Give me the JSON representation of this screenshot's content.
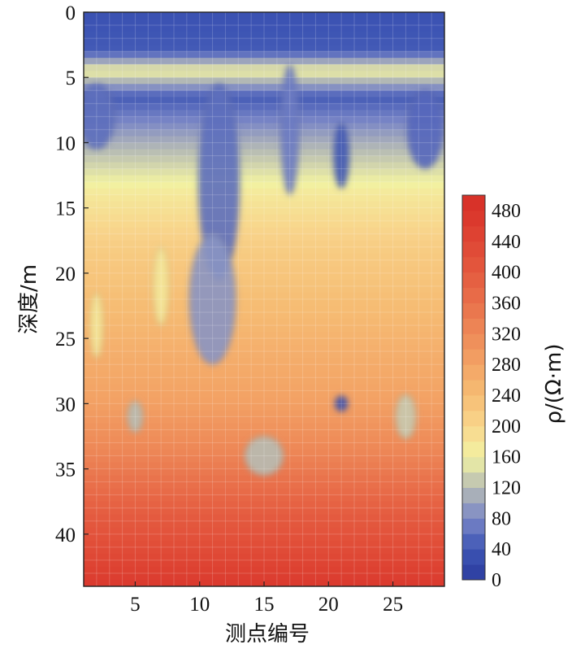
{
  "chart_data": {
    "type": "heatmap",
    "title": "",
    "xlabel": "测点编号",
    "ylabel": "深度/m",
    "colorbar_label": "ρ/(Ω·m)",
    "xlim": [
      1,
      29
    ],
    "ylim": [
      0,
      44
    ],
    "y_inverted": true,
    "x_ticks": [
      5,
      10,
      15,
      20,
      25
    ],
    "y_ticks": [
      0,
      5,
      10,
      15,
      20,
      25,
      30,
      35,
      40
    ],
    "colorbar_ticks": [
      0,
      40,
      80,
      120,
      160,
      200,
      240,
      280,
      320,
      360,
      400,
      440,
      480
    ],
    "color_range": [
      0,
      500
    ],
    "grid": true,
    "legend": "right colorbar",
    "colorscale": [
      {
        "value": 0,
        "color": "#2b3c9e"
      },
      {
        "value": 40,
        "color": "#3d55b4"
      },
      {
        "value": 80,
        "color": "#7a86c6"
      },
      {
        "value": 120,
        "color": "#b7bcb4"
      },
      {
        "value": 160,
        "color": "#f2f2a2"
      },
      {
        "value": 200,
        "color": "#f8d68c"
      },
      {
        "value": 240,
        "color": "#f6bd74"
      },
      {
        "value": 280,
        "color": "#f3a365"
      },
      {
        "value": 320,
        "color": "#ee8a58"
      },
      {
        "value": 360,
        "color": "#e9714b"
      },
      {
        "value": 400,
        "color": "#e45a3f"
      },
      {
        "value": 440,
        "color": "#df4634"
      },
      {
        "value": 480,
        "color": "#d9342b"
      },
      {
        "value": 500,
        "color": "#d62f27"
      }
    ],
    "depth_profile": [
      {
        "depth": 0,
        "rho": 35
      },
      {
        "depth": 3,
        "rho": 45
      },
      {
        "depth": 4.5,
        "rho": 160
      },
      {
        "depth": 6.5,
        "rho": 45
      },
      {
        "depth": 10,
        "rho": 110
      },
      {
        "depth": 14,
        "rho": 175
      },
      {
        "depth": 18,
        "rho": 215
      },
      {
        "depth": 25,
        "rho": 255
      },
      {
        "depth": 30,
        "rho": 285
      },
      {
        "depth": 34,
        "rho": 330
      },
      {
        "depth": 38,
        "rho": 390
      },
      {
        "depth": 42,
        "rho": 440
      },
      {
        "depth": 44,
        "rho": 470
      }
    ],
    "anomalies": [
      {
        "x": 11.5,
        "y": 13,
        "rx": 1.6,
        "ry": 7.5,
        "rho": 60
      },
      {
        "x": 11,
        "y": 22,
        "rx": 1.8,
        "ry": 5,
        "rho": 90
      },
      {
        "x": 17,
        "y": 9,
        "rx": 0.7,
        "ry": 5,
        "rho": 70
      },
      {
        "x": 21,
        "y": 11,
        "rx": 0.6,
        "ry": 2.5,
        "rho": 40
      },
      {
        "x": 2,
        "y": 8,
        "rx": 1.4,
        "ry": 2.5,
        "rho": 60
      },
      {
        "x": 27.5,
        "y": 9,
        "rx": 1.4,
        "ry": 3,
        "rho": 55
      },
      {
        "x": 5,
        "y": 31,
        "rx": 0.6,
        "ry": 1.2,
        "rho": 120
      },
      {
        "x": 15,
        "y": 34,
        "rx": 1.5,
        "ry": 1.5,
        "rho": 120
      },
      {
        "x": 21,
        "y": 30,
        "rx": 0.5,
        "ry": 0.6,
        "rho": 30
      },
      {
        "x": 26,
        "y": 31,
        "rx": 0.8,
        "ry": 1.7,
        "rho": 130
      },
      {
        "x": 7,
        "y": 21,
        "rx": 0.6,
        "ry": 3,
        "rho": 175
      },
      {
        "x": 2,
        "y": 24,
        "rx": 0.5,
        "ry": 2.5,
        "rho": 175
      }
    ]
  }
}
